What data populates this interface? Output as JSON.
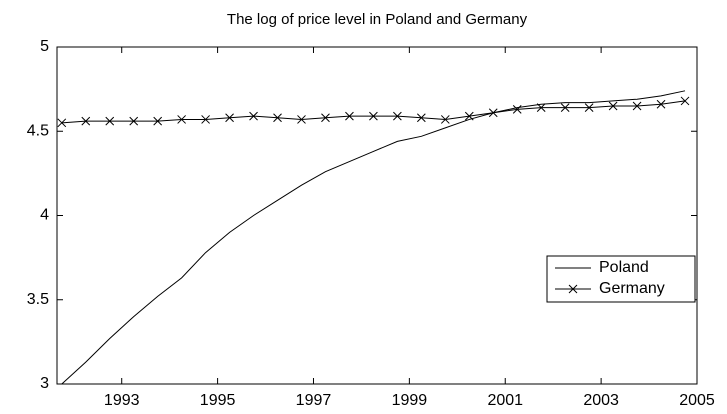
{
  "chart_data": {
    "type": "line",
    "title": "The log of price level in Poland and Germany",
    "x": [
      1991.75,
      1992.25,
      1992.75,
      1993.25,
      1993.75,
      1994.25,
      1994.75,
      1995.25,
      1995.75,
      1996.25,
      1996.75,
      1997.25,
      1997.75,
      1998.25,
      1998.75,
      1999.25,
      1999.75,
      2000.25,
      2000.75,
      2001.25,
      2001.75,
      2002.25,
      2002.75,
      2003.25,
      2003.75,
      2004.25,
      2004.75
    ],
    "series": [
      {
        "name": "Poland",
        "color": "#000000",
        "marker": "none",
        "values": [
          3.0,
          3.13,
          3.27,
          3.4,
          3.52,
          3.63,
          3.78,
          3.9,
          4.0,
          4.09,
          4.18,
          4.26,
          4.32,
          4.38,
          4.44,
          4.47,
          4.52,
          4.57,
          4.61,
          4.64,
          4.66,
          4.67,
          4.67,
          4.68,
          4.69,
          4.71,
          4.74
        ]
      },
      {
        "name": "Germany",
        "color": "#000000",
        "marker": "x",
        "values": [
          4.55,
          4.56,
          4.56,
          4.56,
          4.56,
          4.57,
          4.57,
          4.58,
          4.59,
          4.58,
          4.57,
          4.58,
          4.59,
          4.59,
          4.59,
          4.58,
          4.57,
          4.59,
          4.61,
          4.63,
          4.64,
          4.64,
          4.64,
          4.65,
          4.65,
          4.66,
          4.68
        ]
      }
    ],
    "xlim": [
      1991.65,
      2005
    ],
    "xticks": [
      1993,
      1995,
      1997,
      1999,
      2001,
      2003,
      2005
    ],
    "ylim": [
      3,
      5
    ],
    "yticks": [
      3,
      3.5,
      4,
      4.5,
      5
    ],
    "grid": false,
    "legend": "right"
  }
}
